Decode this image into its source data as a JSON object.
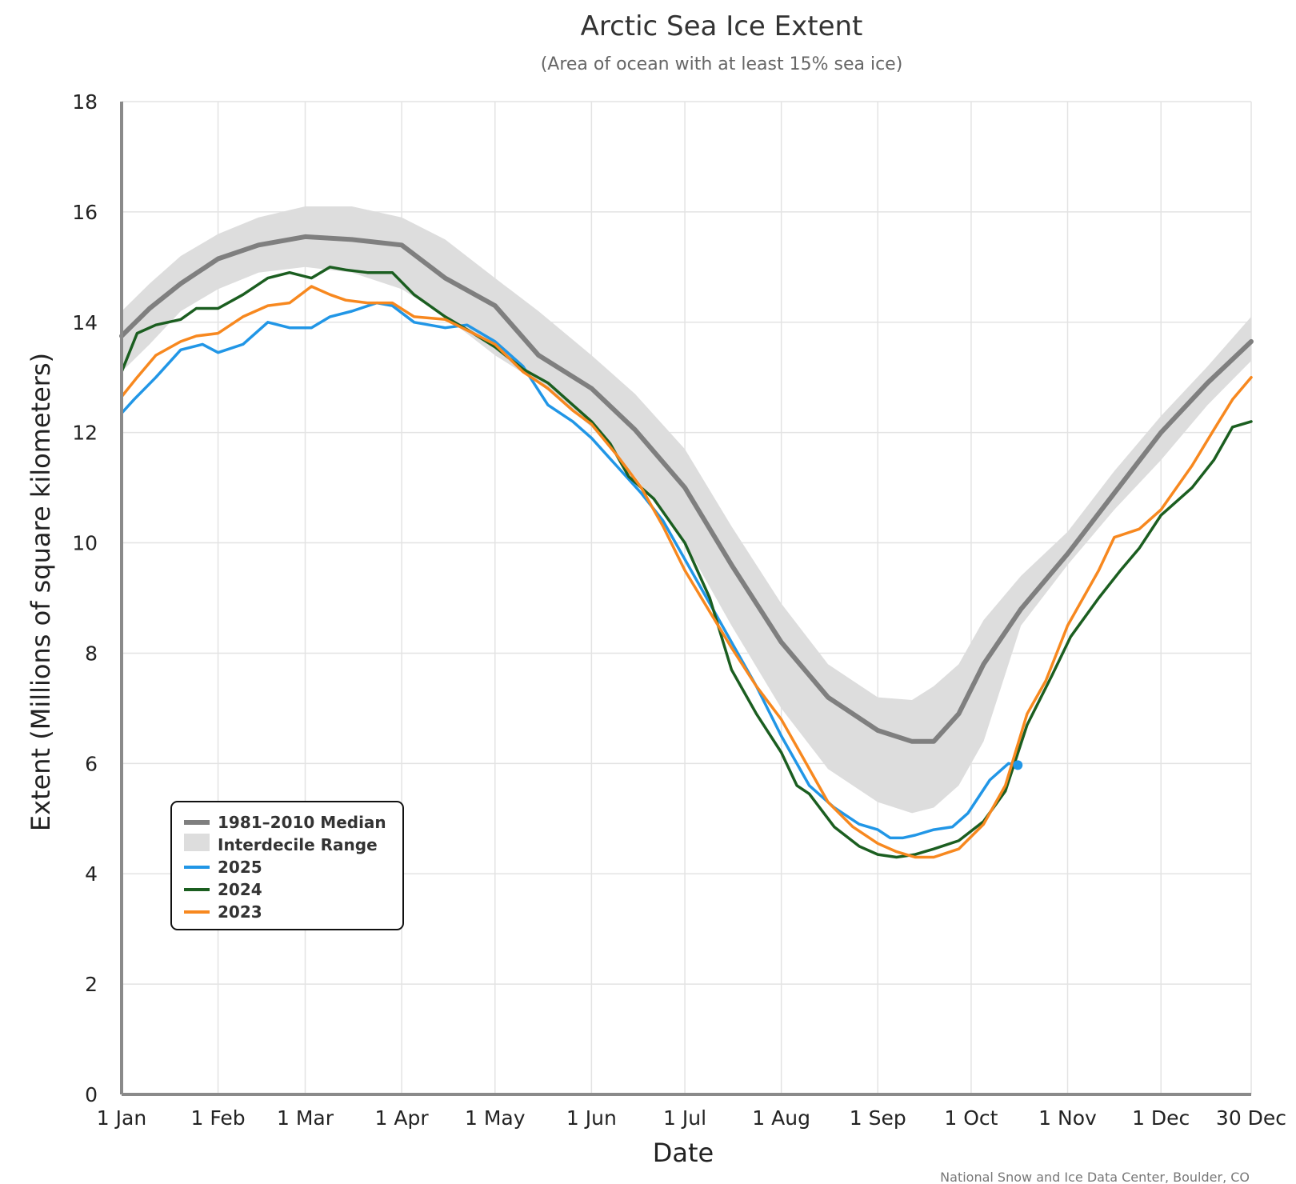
{
  "chart_data": {
    "type": "line",
    "title": "Arctic Sea Ice Extent",
    "subtitle": "(Area of ocean with at least 15% sea ice)",
    "xlabel": "Date",
    "ylabel": "Extent (Millions of square kilometers)",
    "ylim": [
      0,
      18
    ],
    "yticks": [
      0,
      2,
      4,
      6,
      8,
      10,
      12,
      14,
      16,
      18
    ],
    "xticks": [
      {
        "label": "1 Jan",
        "day": 1
      },
      {
        "label": "1 Feb",
        "day": 32
      },
      {
        "label": "1 Mar",
        "day": 60
      },
      {
        "label": "1 Apr",
        "day": 91
      },
      {
        "label": "1 May",
        "day": 121
      },
      {
        "label": "1 Jun",
        "day": 152
      },
      {
        "label": "1 Jul",
        "day": 182
      },
      {
        "label": "1 Aug",
        "day": 213
      },
      {
        "label": "1 Sep",
        "day": 244
      },
      {
        "label": "1 Oct",
        "day": 274
      },
      {
        "label": "1 Nov",
        "day": 305
      },
      {
        "label": "1 Dec",
        "day": 335
      },
      {
        "label": "30 Dec",
        "day": 364
      }
    ],
    "grid": true,
    "legend_position": "bottom-left",
    "credit": "National Snow and Ice Data Center, Boulder, CO",
    "band": {
      "name": "Interdecile Range",
      "color": "#dddddd",
      "x": [
        1,
        10,
        20,
        32,
        45,
        60,
        75,
        91,
        105,
        121,
        135,
        152,
        166,
        182,
        197,
        213,
        228,
        244,
        255,
        262,
        270,
        278,
        290,
        305,
        320,
        335,
        350,
        364
      ],
      "upper": [
        14.2,
        14.7,
        15.2,
        15.6,
        15.9,
        16.1,
        16.1,
        15.9,
        15.5,
        14.8,
        14.2,
        13.4,
        12.7,
        11.7,
        10.3,
        8.9,
        7.8,
        7.2,
        7.15,
        7.4,
        7.8,
        8.6,
        9.4,
        10.2,
        11.3,
        12.3,
        13.2,
        14.1
      ],
      "lower": [
        13.1,
        13.6,
        14.2,
        14.6,
        14.9,
        15.0,
        14.9,
        14.6,
        14.1,
        13.4,
        12.9,
        12.1,
        11.2,
        10.0,
        8.5,
        7.0,
        5.9,
        5.3,
        5.1,
        5.2,
        5.6,
        6.4,
        8.5,
        9.6,
        10.6,
        11.5,
        12.5,
        13.3
      ]
    },
    "series": [
      {
        "name": "1981–2010 Median",
        "color": "#7f7f7f",
        "x": [
          1,
          10,
          20,
          32,
          45,
          60,
          75,
          91,
          105,
          121,
          135,
          152,
          166,
          182,
          197,
          213,
          228,
          244,
          255,
          262,
          270,
          278,
          290,
          305,
          320,
          335,
          350,
          364
        ],
        "values": [
          13.75,
          14.25,
          14.7,
          15.15,
          15.4,
          15.55,
          15.5,
          15.4,
          14.8,
          14.3,
          13.4,
          12.8,
          12.05,
          11.0,
          9.6,
          8.2,
          7.2,
          6.6,
          6.4,
          6.4,
          6.9,
          7.8,
          8.8,
          9.8,
          10.9,
          12.0,
          12.9,
          13.65
        ]
      },
      {
        "name": "2025",
        "color": "#2196e6",
        "x": [
          1,
          5,
          12,
          20,
          27,
          32,
          40,
          48,
          55,
          62,
          68,
          75,
          83,
          88,
          95,
          105,
          112,
          121,
          130,
          138,
          146,
          152,
          160,
          168,
          175,
          182,
          190,
          197,
          205,
          213,
          222,
          230,
          238,
          244,
          248,
          252,
          256,
          262,
          268,
          273,
          280,
          286,
          289
        ],
        "values": [
          12.35,
          12.6,
          13.0,
          13.5,
          13.6,
          13.45,
          13.6,
          14.0,
          13.9,
          13.9,
          14.1,
          14.2,
          14.35,
          14.3,
          14.0,
          13.9,
          13.95,
          13.65,
          13.2,
          12.5,
          12.2,
          11.9,
          11.4,
          10.9,
          10.4,
          9.7,
          8.9,
          8.2,
          7.4,
          6.5,
          5.6,
          5.2,
          4.9,
          4.8,
          4.65,
          4.65,
          4.7,
          4.8,
          4.85,
          5.1,
          5.7,
          6.0,
          5.97
        ]
      },
      {
        "name": "2024",
        "color": "#1b5e20",
        "x": [
          1,
          6,
          12,
          20,
          25,
          32,
          40,
          48,
          55,
          62,
          68,
          73,
          80,
          88,
          95,
          105,
          114,
          121,
          130,
          138,
          146,
          152,
          158,
          164,
          172,
          182,
          190,
          197,
          205,
          213,
          218,
          222,
          230,
          238,
          244,
          250,
          256,
          262,
          270,
          278,
          285,
          292,
          300,
          306,
          315,
          322,
          328,
          335,
          345,
          352,
          358,
          364
        ],
        "values": [
          13.1,
          13.8,
          13.95,
          14.05,
          14.25,
          14.25,
          14.5,
          14.8,
          14.9,
          14.8,
          15.0,
          14.95,
          14.9,
          14.9,
          14.5,
          14.1,
          13.8,
          13.55,
          13.15,
          12.9,
          12.5,
          12.2,
          11.8,
          11.2,
          10.8,
          10.0,
          9.0,
          7.7,
          6.9,
          6.2,
          5.6,
          5.45,
          4.85,
          4.5,
          4.35,
          4.3,
          4.35,
          4.45,
          4.6,
          4.95,
          5.5,
          6.7,
          7.6,
          8.3,
          9.0,
          9.5,
          9.9,
          10.5,
          11.0,
          11.5,
          12.1,
          12.2
        ]
      },
      {
        "name": "2023",
        "color": "#f7881f",
        "x": [
          1,
          6,
          12,
          20,
          25,
          32,
          40,
          48,
          55,
          62,
          68,
          73,
          80,
          88,
          95,
          105,
          114,
          121,
          130,
          138,
          146,
          152,
          160,
          168,
          175,
          182,
          190,
          197,
          205,
          213,
          220,
          228,
          236,
          244,
          250,
          256,
          262,
          270,
          278,
          285,
          292,
          298,
          305,
          315,
          320,
          328,
          335,
          345,
          352,
          358,
          364
        ],
        "values": [
          12.65,
          13.0,
          13.4,
          13.65,
          13.75,
          13.8,
          14.1,
          14.3,
          14.35,
          14.65,
          14.5,
          14.4,
          14.35,
          14.35,
          14.1,
          14.05,
          13.8,
          13.6,
          13.1,
          12.8,
          12.4,
          12.15,
          11.6,
          11.0,
          10.3,
          9.5,
          8.75,
          8.1,
          7.4,
          6.8,
          6.1,
          5.3,
          4.85,
          4.55,
          4.4,
          4.3,
          4.3,
          4.45,
          4.9,
          5.6,
          6.9,
          7.5,
          8.5,
          9.5,
          10.1,
          10.25,
          10.6,
          11.4,
          12.05,
          12.6,
          13.0
        ]
      }
    ],
    "markers": [
      {
        "series": "2025",
        "x": 289,
        "y": 5.97,
        "color": "#2196e6"
      }
    ]
  }
}
